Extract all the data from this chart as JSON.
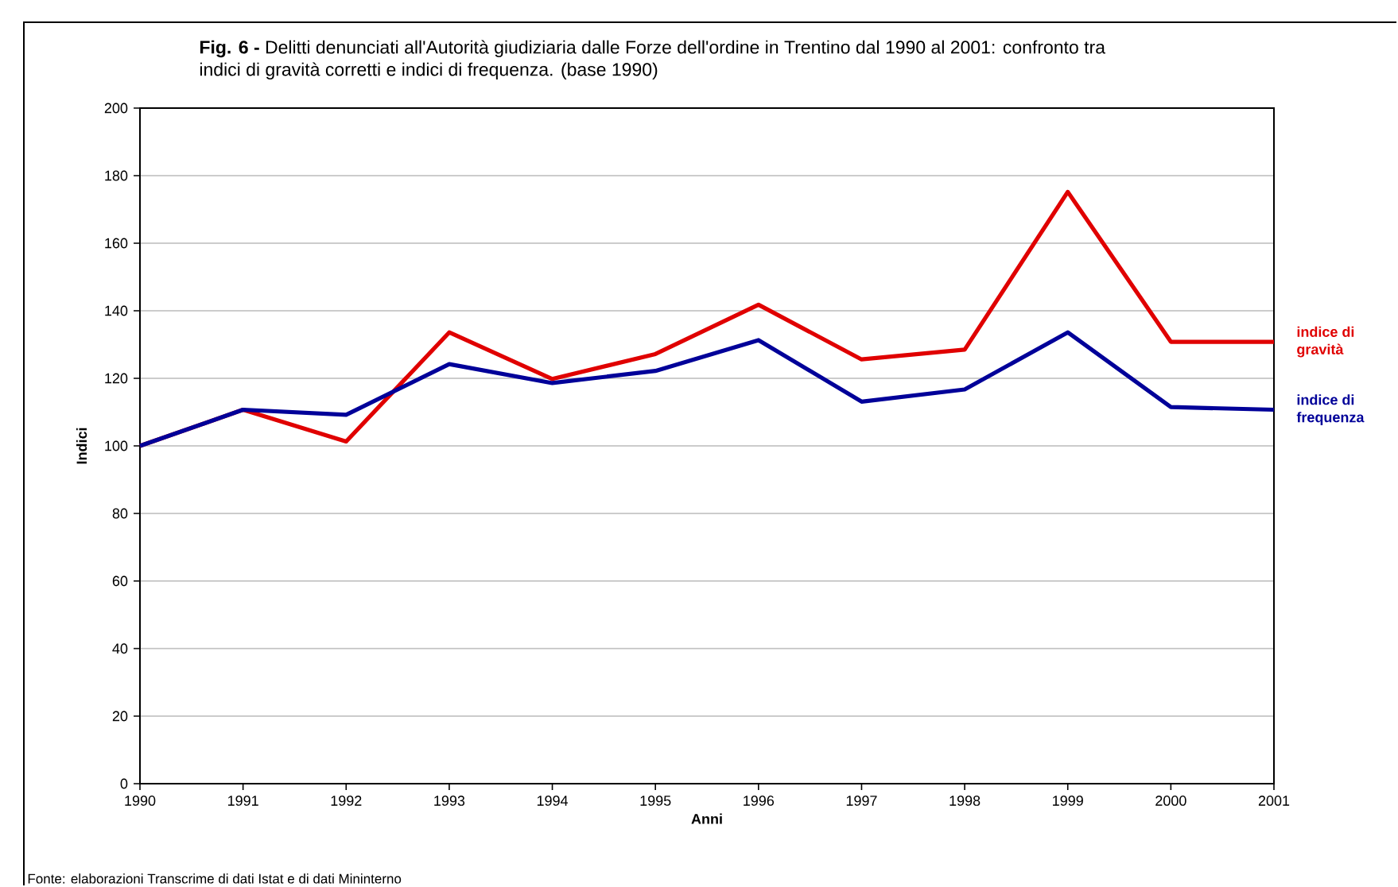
{
  "chart_data": {
    "type": "line",
    "title": "**Fig. 6 -** Delitti denunciati all'Autorità giudiziaria dalle Forze dell'ordine in Trentino dal 1990 al 2001: confronto tra indici di gravità corretti e indici di frequenza. (base 1990)",
    "xlabel": "Anni",
    "ylabel": "Indici",
    "x": [
      1990,
      1991,
      1992,
      1993,
      1994,
      1995,
      1996,
      1997,
      1998,
      1999,
      2000,
      2001
    ],
    "series": [
      {
        "name": "indice di gravità",
        "color": "#e00000",
        "values": [
          100,
          110.7,
          101.3,
          133.6,
          119.8,
          127.2,
          141.8,
          125.6,
          128.5,
          175.2,
          130.8,
          130.8
        ]
      },
      {
        "name": "indice di frequenza",
        "color": "#000099",
        "values": [
          100,
          110.7,
          109.2,
          124.2,
          118.6,
          122.2,
          131.3,
          113.1,
          116.7,
          133.6,
          111.5,
          110.7
        ]
      }
    ],
    "xlim": [
      1990,
      2001
    ],
    "xticks": [
      1990,
      1991,
      1992,
      1993,
      1994,
      1995,
      1996,
      1997,
      1998,
      1999,
      2000,
      2001
    ],
    "ylim": [
      0,
      200
    ],
    "yticks": [
      0,
      20,
      40,
      60,
      80,
      100,
      120,
      140,
      160,
      180,
      200
    ],
    "grid": "y",
    "line_style": "solid",
    "annotations": [
      "Fonte: elaborazioni Transcrime di dati Istat e di dati Mininterno"
    ]
  }
}
